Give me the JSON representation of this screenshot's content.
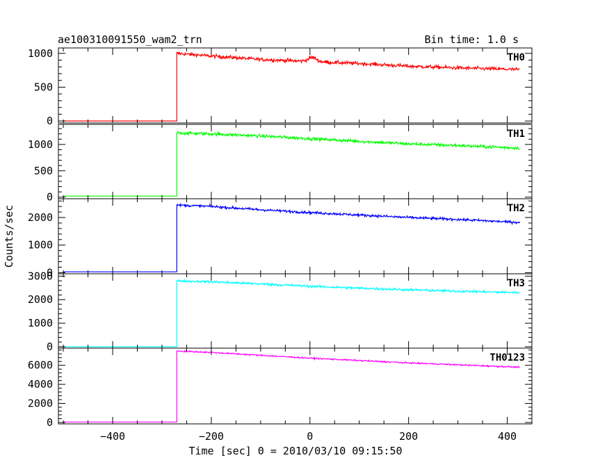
{
  "header": {
    "title": "ae100310091550_wam2_trn",
    "bin_time": "Bin time: 1.0 s"
  },
  "chart_data": {
    "type": "line",
    "xlabel": "Time [sec] 0 = 2010/03/10 09:15:50",
    "ylabel": "Counts/sec",
    "xlim": [
      -510,
      450
    ],
    "xticks": [
      -400,
      -200,
      0,
      200,
      400
    ],
    "x_tick_labels": [
      "−400",
      "−200",
      "0",
      "200",
      "400"
    ],
    "x_range_data": [
      -500,
      425
    ],
    "trigger_x": -270,
    "panels": [
      {
        "name": "TH0",
        "color": "#ff0000",
        "ylim": [
          -30,
          1080
        ],
        "yticks": [
          0,
          500,
          1000
        ],
        "y_tick_labels": [
          "0",
          "500",
          "1000"
        ],
        "pre_level": 0,
        "post_series": [
          [
            -270,
            1000
          ],
          [
            -200,
            960
          ],
          [
            -100,
            910
          ],
          [
            0,
            880
          ],
          [
            100,
            850
          ],
          [
            200,
            810
          ],
          [
            300,
            785
          ],
          [
            425,
            760
          ]
        ],
        "noise": 26,
        "bump": {
          "x": 5,
          "amp": 60,
          "width": 12
        }
      },
      {
        "name": "TH1",
        "color": "#00ff00",
        "ylim": [
          -30,
          1380
        ],
        "yticks": [
          0,
          500,
          1000
        ],
        "y_tick_labels": [
          "0",
          "500",
          "1000"
        ],
        "pre_level": 20,
        "post_series": [
          [
            -270,
            1220
          ],
          [
            -200,
            1200
          ],
          [
            -100,
            1160
          ],
          [
            0,
            1110
          ],
          [
            100,
            1060
          ],
          [
            200,
            1010
          ],
          [
            300,
            980
          ],
          [
            425,
            930
          ]
        ],
        "noise": 30
      },
      {
        "name": "TH2",
        "color": "#0000ff",
        "ylim": [
          -40,
          2680
        ],
        "yticks": [
          0,
          1000,
          2000
        ],
        "y_tick_labels": [
          "0",
          "1000",
          "2000"
        ],
        "pre_level": 30,
        "post_series": [
          [
            -270,
            2450
          ],
          [
            -200,
            2400
          ],
          [
            -100,
            2280
          ],
          [
            0,
            2180
          ],
          [
            100,
            2090
          ],
          [
            200,
            2000
          ],
          [
            300,
            1930
          ],
          [
            425,
            1820
          ]
        ],
        "noise": 45
      },
      {
        "name": "TH3",
        "color": "#00ffff",
        "ylim": [
          -60,
          3100
        ],
        "yticks": [
          0,
          1000,
          2000,
          3000
        ],
        "y_tick_labels": [
          "0",
          "1000",
          "2000",
          "3000"
        ],
        "pre_level": 0,
        "post_series": [
          [
            -270,
            2800
          ],
          [
            -200,
            2760
          ],
          [
            -100,
            2670
          ],
          [
            0,
            2570
          ],
          [
            100,
            2490
          ],
          [
            200,
            2420
          ],
          [
            300,
            2360
          ],
          [
            425,
            2300
          ]
        ],
        "noise": 50
      },
      {
        "name": "TH0123",
        "color": "#ff00ff",
        "ylim": [
          -150,
          7800
        ],
        "yticks": [
          0,
          2000,
          4000,
          6000
        ],
        "y_tick_labels": [
          "0",
          "2000",
          "4000",
          "6000"
        ],
        "pre_level": 50,
        "post_series": [
          [
            -270,
            7500
          ],
          [
            -200,
            7350
          ],
          [
            -100,
            7050
          ],
          [
            0,
            6750
          ],
          [
            100,
            6500
          ],
          [
            200,
            6250
          ],
          [
            300,
            6050
          ],
          [
            425,
            5800
          ]
        ],
        "noise": 70
      }
    ]
  }
}
